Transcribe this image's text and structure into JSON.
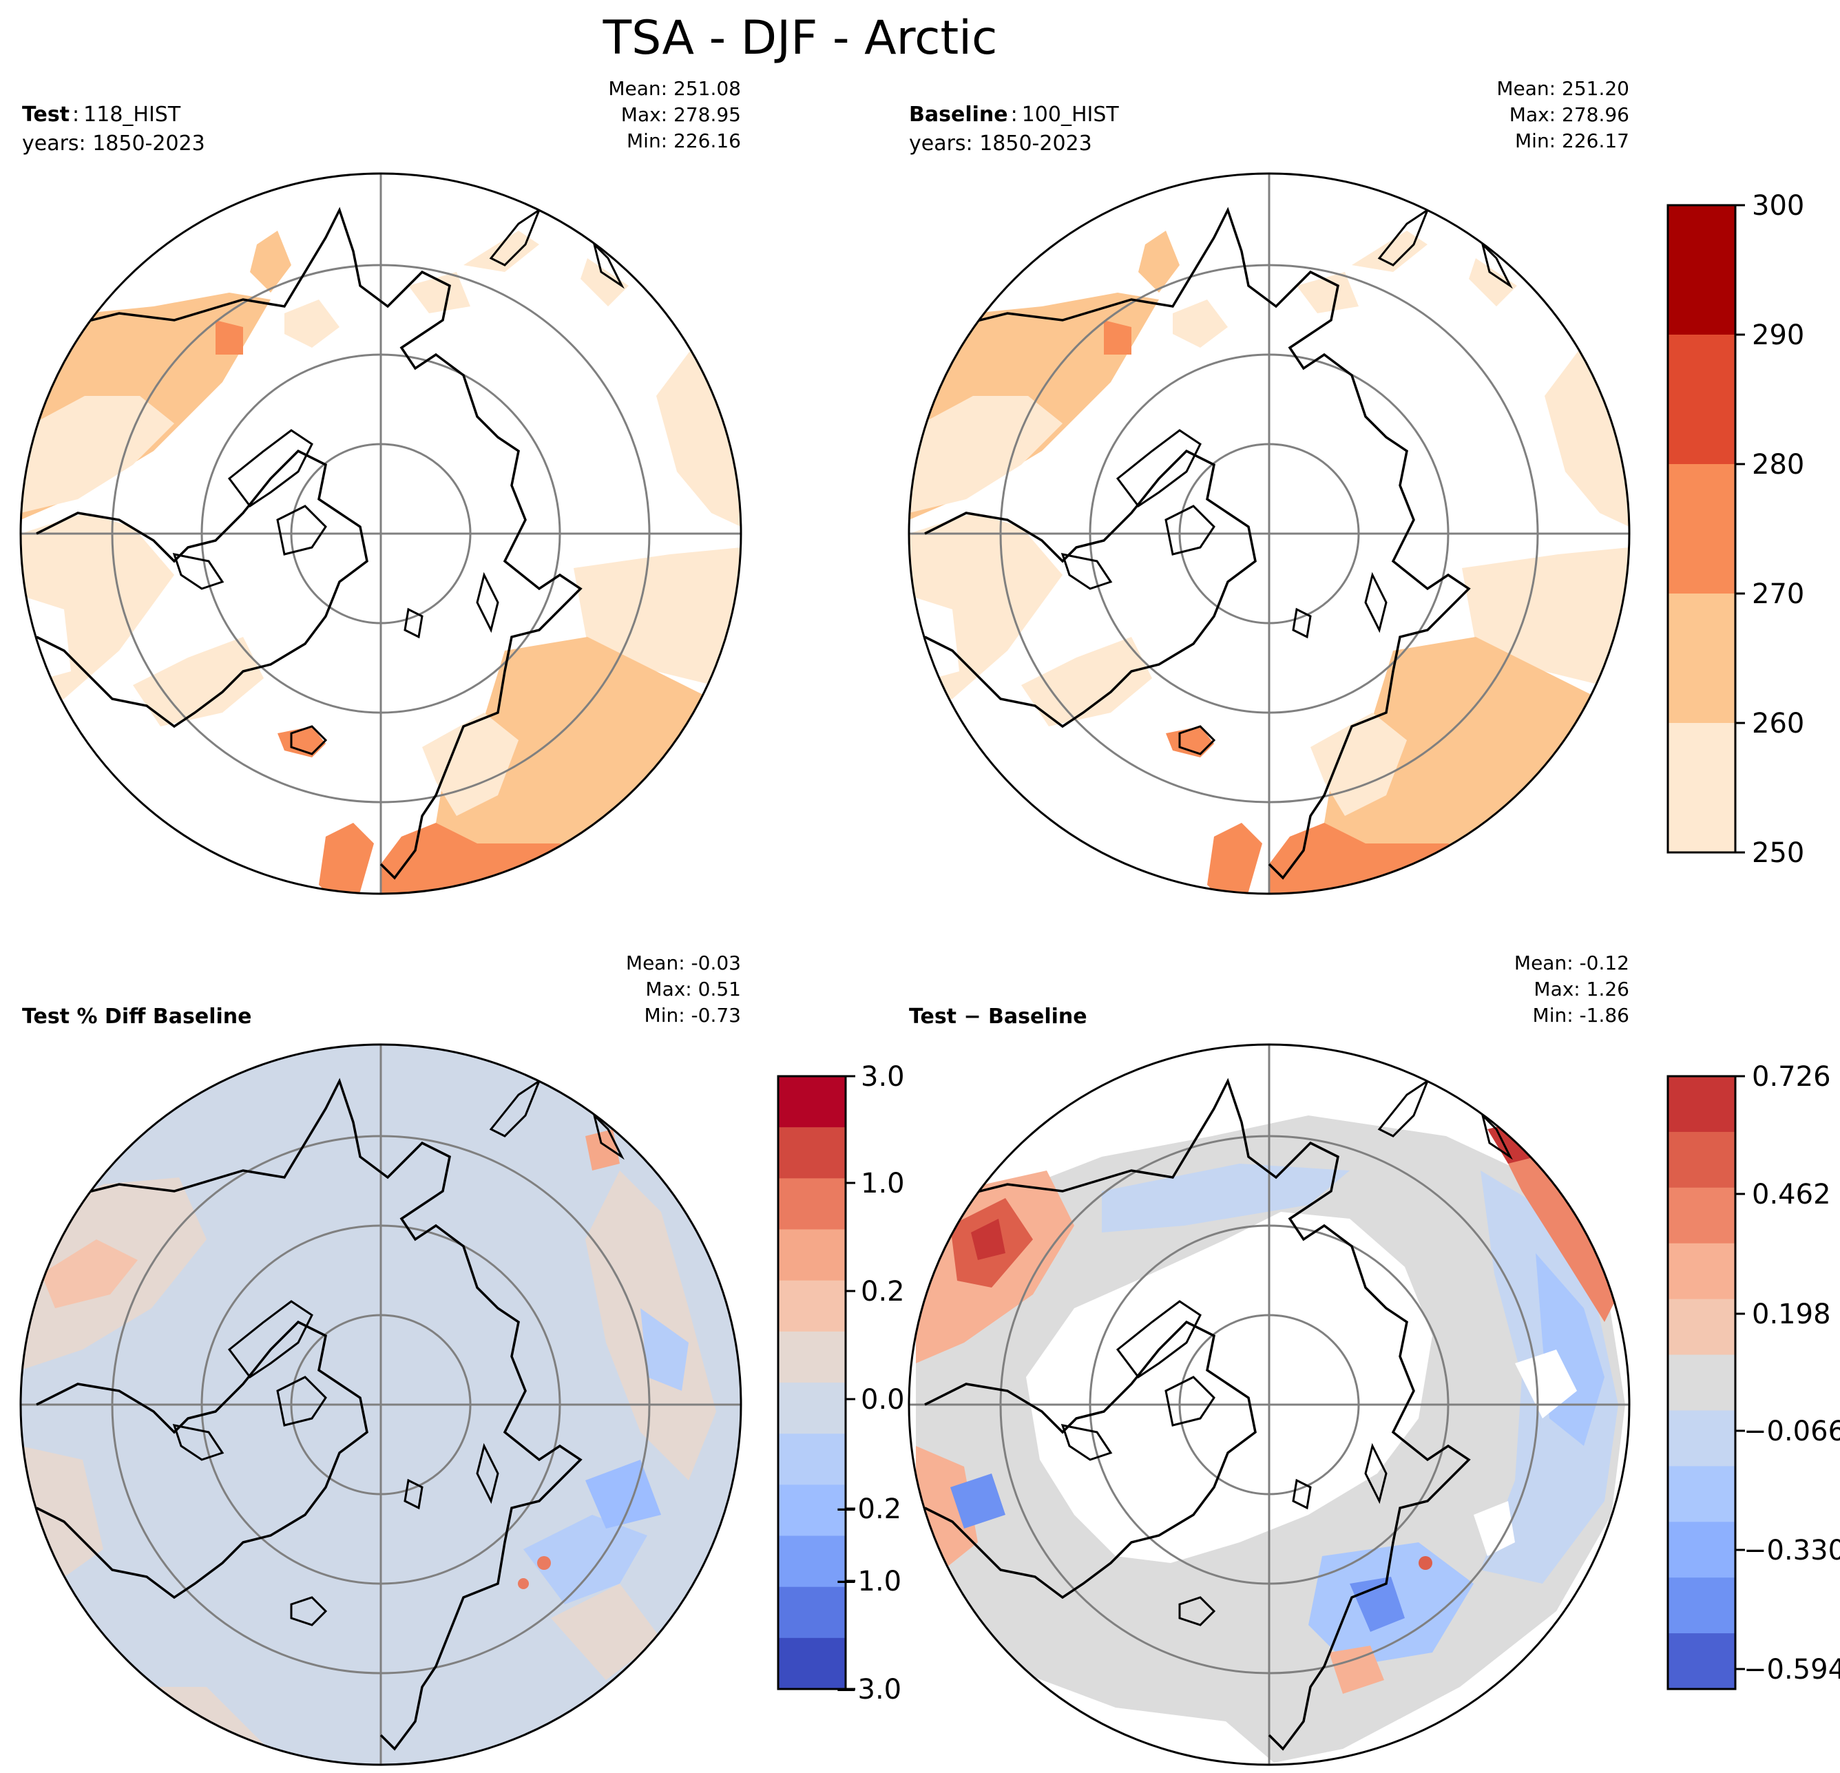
{
  "figure": {
    "title": "TSA - DJF - Arctic"
  },
  "panels": [
    {
      "id": "test",
      "label_bold": "Test",
      "label_sep": ":",
      "label_value": "118_HIST",
      "years": "years: 1850-2023",
      "stats": [
        "Mean: 251.08",
        "Max: 278.95",
        "Min: 226.16"
      ]
    },
    {
      "id": "baseline",
      "label_bold": "Baseline",
      "label_sep": ":",
      "label_value": "100_HIST",
      "years": "years: 1850-2023",
      "stats": [
        "Mean: 251.20",
        "Max: 278.96",
        "Min: 226.17"
      ]
    },
    {
      "id": "pct-diff",
      "label_bold": "Test % Diff Baseline",
      "stats": [
        "Mean: -0.03",
        "Max:  0.51",
        "Min: -0.73"
      ]
    },
    {
      "id": "diff",
      "label_bold": "Test − Baseline",
      "stats": [
        "Mean: -0.12",
        "Max:  1.26",
        "Min: -1.86"
      ]
    }
  ],
  "chart_data": [
    {
      "type": "heatmap",
      "title": "Test: 118_HIST",
      "projection": "north-polar-stereographic",
      "colorbar": {
        "ticks": [
          "250",
          "260",
          "270",
          "280",
          "290",
          "300"
        ],
        "levels": [
          250,
          260,
          270,
          280,
          290,
          300
        ],
        "colors": [
          "#fee9d1",
          "#fcc690",
          "#f88c57",
          "#e04a2f",
          "#a80000"
        ]
      },
      "stats": {
        "mean": 251.08,
        "max": 278.95,
        "min": 226.16
      }
    },
    {
      "type": "heatmap",
      "title": "Baseline: 100_HIST",
      "projection": "north-polar-stereographic",
      "colorbar": "shared with Test",
      "stats": {
        "mean": 251.2,
        "max": 278.96,
        "min": 226.17
      }
    },
    {
      "type": "heatmap",
      "title": "Test % Diff Baseline",
      "projection": "north-polar-stereographic",
      "colorbar": {
        "ticks": [
          "3.0",
          "1.0",
          "0.2",
          "0.0",
          "−0.2",
          "−1.0",
          "−3.0"
        ],
        "colors_top_to_bottom": [
          "#b40426",
          "#d1493f",
          "#ea7b60",
          "#f5a889",
          "#f5c4ad",
          "#e5d8d1",
          "#cfd9e8",
          "#b5cdf9",
          "#9dbdff",
          "#7b9ff9",
          "#5977e3",
          "#3b4cc0"
        ]
      },
      "stats": {
        "mean": -0.03,
        "max": 0.51,
        "min": -0.73
      }
    },
    {
      "type": "heatmap",
      "title": "Test − Baseline",
      "projection": "north-polar-stereographic",
      "colorbar": {
        "ticks": [
          "0.726",
          "0.462",
          "0.198",
          "−0.066",
          "−0.330",
          "−0.594"
        ],
        "colors_top_to_bottom": [
          "#c73635",
          "#dd5f4b",
          "#ee8669",
          "#f7b194",
          "#f3c7b1",
          "#dcdcdc",
          "#c5d6f2",
          "#aac7fd",
          "#8db0fe",
          "#6e92f3",
          "#4b61d2"
        ]
      },
      "stats": {
        "mean": -0.12,
        "max": 1.26,
        "min": -1.86
      }
    }
  ],
  "colors": {
    "coast": "#000000",
    "grid": "#808080"
  }
}
